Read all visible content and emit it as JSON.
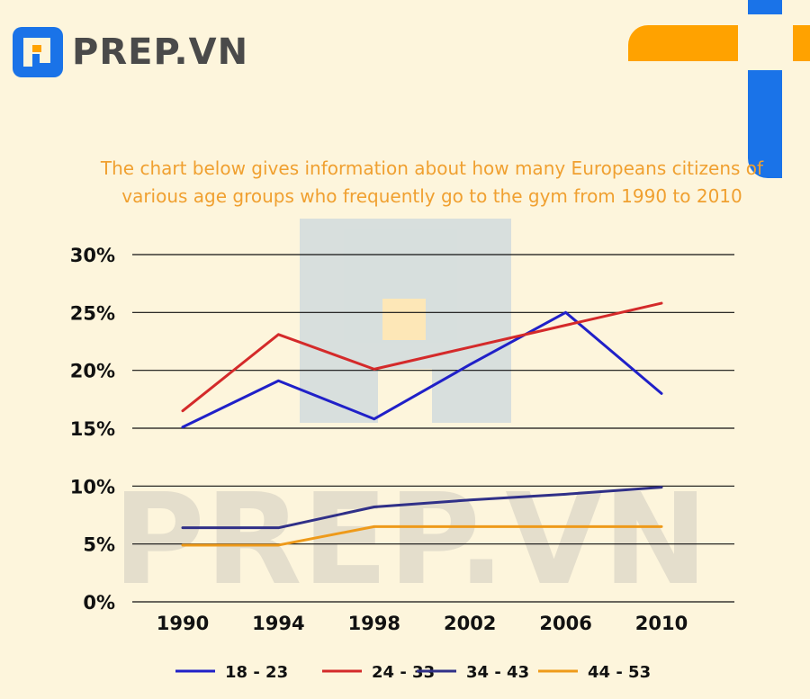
{
  "logo": {
    "text": "PREP.VN"
  },
  "watermark": {
    "text": "PREP.VN"
  },
  "colors": {
    "background": "#fdf5dc",
    "accent_orange": "#ffa200",
    "accent_blue": "#1a73e8",
    "title": "#f0a030"
  },
  "chart_data": {
    "type": "line",
    "title": "The chart below gives information about how many Europeans citizens of various age groups who frequently go to the gym from 1990 to 2010",
    "xlabel": "",
    "ylabel": "",
    "x": [
      "1990",
      "1994",
      "1998",
      "2002",
      "2006",
      "2010"
    ],
    "ylim": [
      0,
      30
    ],
    "yticks": [
      "0%",
      "5%",
      "10%",
      "15%",
      "20%",
      "25%",
      "30%"
    ],
    "grid": true,
    "legend_position": "bottom",
    "series": [
      {
        "name": "18 - 23",
        "color": "#2020c8",
        "values": [
          15.1,
          19.1,
          15.8,
          20.5,
          25,
          18
        ]
      },
      {
        "name": "24 - 33",
        "color": "#d42a2a",
        "values": [
          16.5,
          23.1,
          20.1,
          22,
          23.9,
          25.8
        ]
      },
      {
        "name": "34 - 43",
        "color": "#303088",
        "values": [
          6.4,
          6.4,
          8.2,
          8.8,
          9.3,
          9.9
        ]
      },
      {
        "name": "44 - 53",
        "color": "#ee9a1a",
        "values": [
          4.9,
          4.9,
          6.5,
          6.5,
          6.5,
          6.5
        ]
      }
    ]
  }
}
